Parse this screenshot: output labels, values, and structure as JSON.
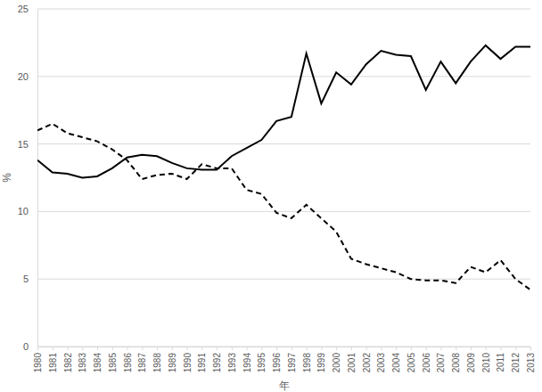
{
  "chart_data": {
    "type": "line",
    "x_label": "年",
    "y_label": "%",
    "categories": [
      "1980",
      "1981",
      "1982",
      "1983",
      "1984",
      "1985",
      "1986",
      "1987",
      "1988",
      "1989",
      "1990",
      "1991",
      "1992",
      "1993",
      "1994",
      "1995",
      "1996",
      "1997",
      "1998",
      "1999",
      "2000",
      "2001",
      "2002",
      "2003",
      "2004",
      "2005",
      "2006",
      "2007",
      "2008",
      "2009",
      "2010",
      "2011",
      "2012",
      "2013"
    ],
    "series": [
      {
        "color": "#000000",
        "line_style": "solid",
        "values": [
          13.8,
          12.9,
          12.8,
          12.5,
          12.6,
          13.2,
          14.0,
          14.2,
          14.1,
          13.6,
          13.2,
          13.1,
          13.1,
          14.1,
          14.7,
          15.3,
          16.7,
          17.0,
          21.7,
          18.0,
          20.3,
          19.4,
          20.9,
          21.9,
          21.6,
          21.5,
          19.0,
          21.1,
          19.5,
          21.1,
          22.3,
          21.3,
          22.2,
          22.2
        ]
      },
      {
        "color": "#000000",
        "line_style": "dashed",
        "values": [
          16.0,
          16.5,
          15.8,
          15.5,
          15.2,
          14.6,
          13.8,
          12.4,
          12.7,
          12.8,
          12.4,
          13.5,
          13.2,
          13.2,
          11.6,
          11.3,
          9.9,
          9.5,
          10.5,
          9.5,
          8.5,
          6.5,
          6.1,
          5.8,
          5.5,
          5.0,
          4.9,
          4.9,
          4.7,
          5.9,
          5.5,
          6.4,
          5.0,
          4.2
        ]
      }
    ],
    "ylim": [
      0,
      25
    ],
    "yticks": [
      0,
      5,
      10,
      15,
      20,
      25
    ],
    "grid": true
  }
}
